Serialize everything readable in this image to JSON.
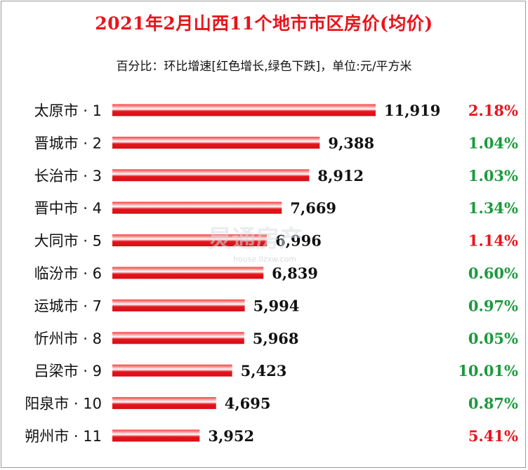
{
  "chart_data": {
    "type": "bar",
    "orientation": "horizontal",
    "title": "2021年2月山西11个地市市区房价(均价)",
    "subtitle": "百分比：环比增速[红色增长,绿色下跌]，单位:元/平方米",
    "categories": [
      "太原市 · 1",
      "晋城市 · 2",
      "长治市 · 3",
      "晋中市 · 4",
      "大同市 · 5",
      "临汾市 · 6",
      "运城市 · 7",
      "忻州市 · 8",
      "吕梁市 · 9",
      "阳泉市 · 10",
      "朔州市 · 11"
    ],
    "values": [
      11919,
      9388,
      8912,
      7669,
      6996,
      6839,
      5994,
      5968,
      5423,
      4695,
      3952
    ],
    "value_labels": [
      "11,919",
      "9,388",
      "8,912",
      "7,669",
      "6,996",
      "6,839",
      "5,994",
      "5,968",
      "5,423",
      "4,695",
      "3,952"
    ],
    "changes": [
      "2.18%",
      "1.04%",
      "1.03%",
      "1.34%",
      "1.14%",
      "0.60%",
      "0.97%",
      "0.05%",
      "10.01%",
      "0.87%",
      "5.41%"
    ],
    "change_direction": [
      "up",
      "down",
      "down",
      "down",
      "up",
      "down",
      "down",
      "down",
      "down",
      "down",
      "up"
    ],
    "colors": {
      "bar": "#e8141c",
      "up": "#e8141c",
      "down": "#1a9a3c",
      "title": "#e8141c"
    }
  },
  "watermark": {
    "main": "炅通房产",
    "sub": "house.llzxw.com"
  }
}
